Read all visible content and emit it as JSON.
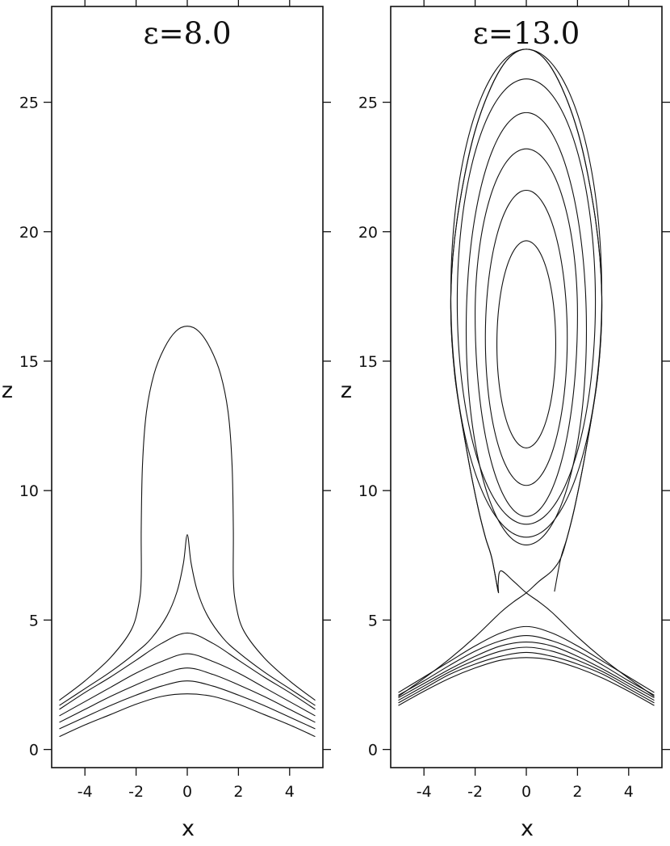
{
  "chart_data": [
    {
      "type": "line",
      "title": "ε=8.0",
      "xlabel": "x",
      "ylabel": "z",
      "xlim": [
        -5.3,
        5.3
      ],
      "ylim": [
        -0.7,
        28.7
      ],
      "xticks": [
        -4,
        -2,
        0,
        2,
        4
      ],
      "yticks": [
        0,
        5,
        10,
        15,
        20,
        25
      ],
      "grid": false,
      "closed_curves": [],
      "open_curves": [
        {
          "x": [
            -5,
            -4,
            -3,
            -2,
            -1,
            0,
            1,
            2,
            3,
            4,
            5
          ],
          "y": [
            0.5,
            0.95,
            1.35,
            1.75,
            2.05,
            2.15,
            2.05,
            1.75,
            1.35,
            0.95,
            0.5
          ]
        },
        {
          "x": [
            -5,
            -4,
            -3,
            -2,
            -1,
            0,
            1,
            2,
            3,
            4,
            5
          ],
          "y": [
            0.8,
            1.25,
            1.7,
            2.1,
            2.45,
            2.65,
            2.45,
            2.1,
            1.7,
            1.25,
            0.8
          ]
        },
        {
          "x": [
            -5,
            -4,
            -3,
            -2,
            -1,
            0,
            1,
            2,
            3,
            4,
            5
          ],
          "y": [
            1.05,
            1.55,
            2.05,
            2.5,
            2.9,
            3.15,
            2.9,
            2.5,
            2.05,
            1.55,
            1.05
          ]
        },
        {
          "x": [
            -5,
            -4,
            -3,
            -2,
            -1,
            0,
            1,
            2,
            3,
            4,
            5
          ],
          "y": [
            1.3,
            1.85,
            2.4,
            2.95,
            3.4,
            3.7,
            3.4,
            2.95,
            2.4,
            1.85,
            1.3
          ]
        },
        {
          "x": [
            -5,
            -4,
            -3,
            -2,
            -1,
            0,
            1,
            2,
            3,
            4,
            5
          ],
          "y": [
            1.55,
            2.2,
            2.8,
            3.45,
            4.1,
            4.5,
            4.1,
            3.45,
            2.8,
            2.2,
            1.55
          ]
        },
        {
          "x": [
            -5,
            -4,
            -3,
            -2,
            -1.4,
            -0.8,
            -0.4,
            -0.15,
            0,
            0.15,
            0.4,
            0.8,
            1.4,
            2,
            3,
            4,
            5
          ],
          "y": [
            1.7,
            2.35,
            3.0,
            3.75,
            4.3,
            5.15,
            6.1,
            7.2,
            8.3,
            7.2,
            6.1,
            5.15,
            4.3,
            3.75,
            3.0,
            2.35,
            1.7
          ]
        },
        {
          "x": [
            -5,
            -4,
            -3,
            -2.2,
            -1.9,
            -1.8,
            -1.8,
            -1.75,
            -1.6,
            -1.3,
            -0.9,
            -0.45,
            0,
            0.45,
            0.9,
            1.3,
            1.6,
            1.75,
            1.8,
            1.8,
            1.9,
            2.2,
            3,
            4,
            5
          ],
          "y": [
            1.9,
            2.65,
            3.55,
            4.6,
            5.6,
            6.6,
            8.5,
            11.0,
            13.0,
            14.5,
            15.5,
            16.15,
            16.35,
            16.15,
            15.5,
            14.5,
            13.0,
            11.0,
            8.5,
            6.6,
            5.6,
            4.6,
            3.55,
            2.65,
            1.9
          ]
        }
      ]
    },
    {
      "type": "line",
      "title": "ε=13.0",
      "xlabel": "x",
      "ylabel": "z",
      "xlim": [
        -5.3,
        5.3
      ],
      "ylim": [
        -0.7,
        28.7
      ],
      "xticks": [
        -4,
        -2,
        0,
        2,
        4
      ],
      "yticks": [
        0,
        5,
        10,
        15,
        20,
        25
      ],
      "grid": false,
      "closed_curves": [
        {
          "cx": 0,
          "cz": 15.65,
          "rx": 1.15,
          "z_bottom": 11.65,
          "z_top": 19.65
        },
        {
          "cx": 0,
          "cz": 15.9,
          "rx": 1.6,
          "z_bottom": 10.2,
          "z_top": 21.6
        },
        {
          "cx": 0,
          "cz": 16.8,
          "rx": 2.0,
          "z_bottom": 9.0,
          "z_top": 23.2
        },
        {
          "cx": 0,
          "cz": 16.2,
          "rx": 2.35,
          "z_bottom": 7.9,
          "z_top": 24.6
        },
        {
          "cx": 0,
          "cz": 17.3,
          "rx": 2.7,
          "z_bottom": 8.7,
          "z_top": 25.9
        },
        {
          "cx": 0,
          "cz": 17.6,
          "rx": 2.95,
          "z_bottom": 8.2,
          "z_top": 27.05
        }
      ],
      "open_curves": [
        {
          "x": [
            -5,
            -4,
            -3,
            -2,
            -1,
            0,
            1,
            2,
            3,
            4,
            5
          ],
          "y": [
            1.7,
            2.25,
            2.75,
            3.15,
            3.45,
            3.55,
            3.45,
            3.15,
            2.75,
            2.25,
            1.7
          ]
        },
        {
          "x": [
            -5,
            -4,
            -3,
            -2,
            -1,
            0,
            1,
            2,
            3,
            4,
            5
          ],
          "y": [
            1.8,
            2.35,
            2.9,
            3.3,
            3.6,
            3.75,
            3.6,
            3.3,
            2.9,
            2.35,
            1.8
          ]
        },
        {
          "x": [
            -5,
            -4,
            -3,
            -2,
            -1,
            0,
            1,
            2,
            3,
            4,
            5
          ],
          "y": [
            1.9,
            2.45,
            3.0,
            3.45,
            3.8,
            3.95,
            3.8,
            3.45,
            3.0,
            2.45,
            1.9
          ]
        },
        {
          "x": [
            -5,
            -4,
            -3,
            -2,
            -1,
            0,
            1,
            2,
            3,
            4,
            5
          ],
          "y": [
            2.0,
            2.55,
            3.1,
            3.6,
            4.0,
            4.15,
            4.0,
            3.6,
            3.1,
            2.55,
            2.0
          ]
        },
        {
          "x": [
            -5,
            -4,
            -3,
            -2,
            -1,
            0,
            1,
            2,
            3,
            4,
            5
          ],
          "y": [
            2.1,
            2.65,
            3.25,
            3.8,
            4.2,
            4.4,
            4.2,
            3.8,
            3.25,
            2.65,
            2.1
          ]
        },
        {
          "x": [
            -5,
            -4,
            -3,
            -2,
            -1,
            0,
            1,
            2,
            3,
            4,
            5
          ],
          "y": [
            2.2,
            2.8,
            3.4,
            4.0,
            4.5,
            4.75,
            4.5,
            4.0,
            3.4,
            2.8,
            2.2
          ]
        },
        {
          "x": [
            -5,
            -4,
            -3,
            -2,
            -1,
            -0.5,
            0,
            0.5,
            1,
            1.35,
            1.6,
            1.9,
            2.3,
            2.8,
            2.95,
            2.7,
            2.0,
            1.0,
            0,
            -1.0,
            -2.0,
            -2.7,
            -2.95,
            -2.8,
            -2.3,
            -1.9,
            -1.6,
            -1.35,
            -1.1
          ],
          "y": [
            2.05,
            2.75,
            3.5,
            4.35,
            5.3,
            5.7,
            6.05,
            6.5,
            6.9,
            7.4,
            8.2,
            9.4,
            11.4,
            14.5,
            17.5,
            20.5,
            23.9,
            26.3,
            27.05,
            26.3,
            23.9,
            20.5,
            17.5,
            14.5,
            11.4,
            9.4,
            8.2,
            7.4,
            6.1
          ]
        },
        {
          "x": [
            5,
            4,
            3,
            2,
            1,
            0.5,
            0,
            -0.5,
            -1,
            -1.1,
            -1.1,
            -1.35,
            -1.6,
            -1.9,
            -2.3,
            -2.8,
            -2.95,
            -2.7,
            -2.0,
            -1.0,
            0,
            1.0,
            2.0,
            2.7,
            2.95,
            2.8,
            2.3,
            1.9,
            1.6,
            1.35,
            1.1
          ],
          "y": [
            2.05,
            2.75,
            3.5,
            4.35,
            5.3,
            5.7,
            6.05,
            6.5,
            6.9,
            6.4,
            6.1,
            7.4,
            8.2,
            9.4,
            11.4,
            14.5,
            17.5,
            20.5,
            23.9,
            26.3,
            27.05,
            26.3,
            23.9,
            20.5,
            17.5,
            14.5,
            11.4,
            9.4,
            8.2,
            7.4,
            6.1
          ]
        }
      ]
    }
  ]
}
